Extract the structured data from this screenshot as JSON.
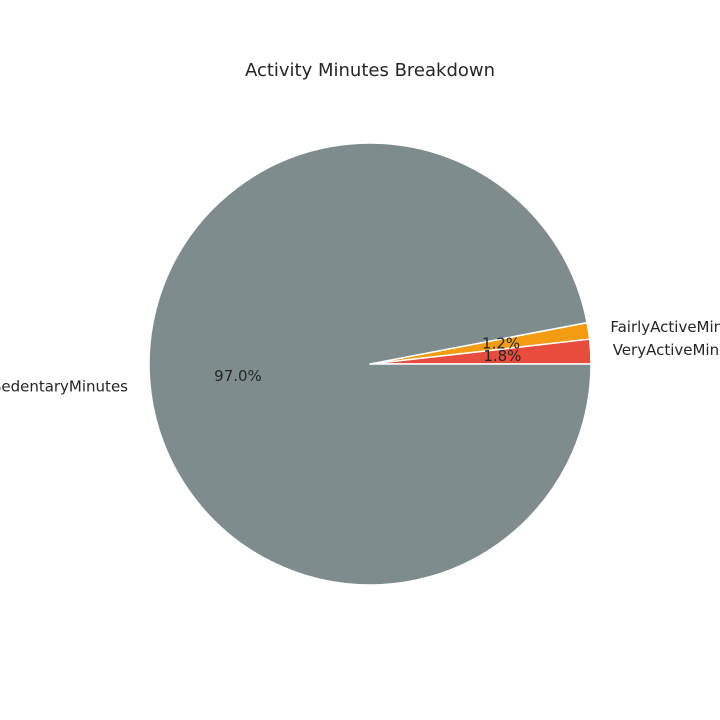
{
  "chart_data": {
    "type": "pie",
    "title": "Activity Minutes Breakdown",
    "start_angle": "0° (3 o'clock), counter-clockwise",
    "slices": [
      {
        "label": "VeryActiveMinutes",
        "value": 1.8,
        "pct_label": "1.8%",
        "color": "#e74c3c"
      },
      {
        "label": "FairlyActiveMinutes",
        "value": 1.2,
        "pct_label": "1.2%",
        "color": "#f39c12"
      },
      {
        "label": "SedentaryMinutes",
        "value": 97.0,
        "pct_label": "97.0%",
        "color": "#7f8c8d"
      }
    ]
  }
}
